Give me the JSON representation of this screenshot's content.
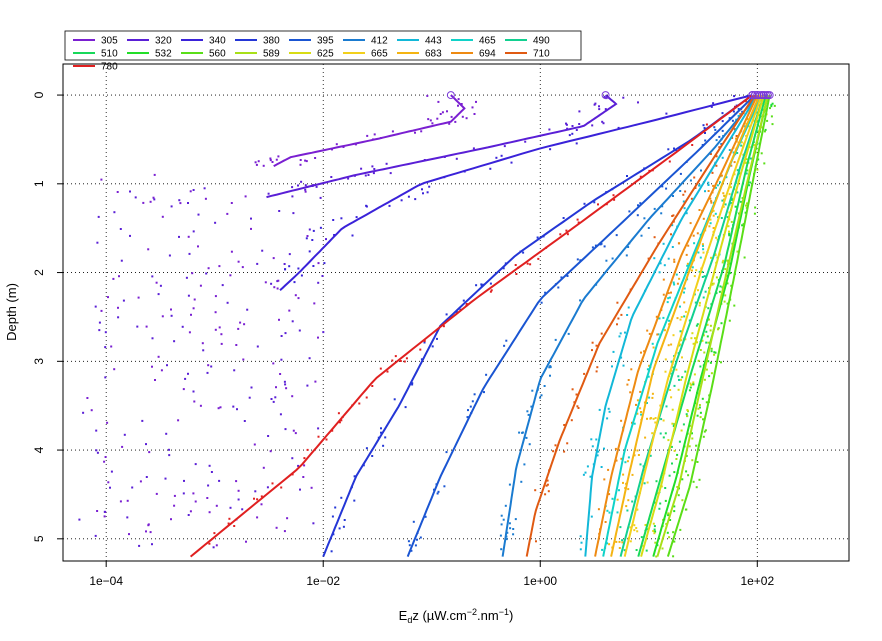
{
  "chart_data": {
    "type": "scatter",
    "title": "",
    "xlabel": "Eₐz",
    "xlabel_sub": "d",
    "xlabel_main": "E",
    "xlabel_after": "z  (µW.cm",
    "xlabel_sup1": "−2",
    "xlabel_mid": ".nm",
    "xlabel_sup2": "−1",
    "xlabel_end": ")",
    "ylabel": "Depth (m)",
    "xscale": "log",
    "xlim": [
      4e-05,
      700
    ],
    "ylim": [
      5.25,
      -0.35
    ],
    "x_ticks": [
      0.0001,
      0.01,
      1,
      100
    ],
    "x_tick_labels": [
      "1e−04",
      "1e−02",
      "1e+00",
      "1e+02"
    ],
    "y_ticks": [
      0,
      1,
      2,
      3,
      4,
      5
    ],
    "y_tick_labels": [
      "0",
      "1",
      "2",
      "3",
      "4",
      "5"
    ],
    "grid": true,
    "legend_position": "top-left",
    "legend_columns": 9,
    "series": [
      {
        "name": "305",
        "color": "#7a1fd1",
        "curve": [
          [
            0.15,
            0
          ],
          [
            0.2,
            0.15
          ],
          [
            0.15,
            0.3
          ],
          [
            0.03,
            0.5
          ],
          [
            0.005,
            0.7
          ],
          [
            0.0035,
            0.8
          ]
        ]
      },
      {
        "name": "320",
        "color": "#5a1fd6",
        "curve": [
          [
            4,
            0
          ],
          [
            5,
            0.1
          ],
          [
            2.5,
            0.35
          ],
          [
            0.3,
            0.6
          ],
          [
            0.02,
            0.9
          ],
          [
            0.003,
            1.15
          ]
        ]
      },
      {
        "name": "340",
        "color": "#3a22d9",
        "curve": [
          [
            90,
            0
          ],
          [
            10,
            0.3
          ],
          [
            1,
            0.6
          ],
          [
            0.08,
            1.0
          ],
          [
            0.015,
            1.5
          ],
          [
            0.006,
            2.0
          ],
          [
            0.004,
            2.2
          ]
        ]
      },
      {
        "name": "380",
        "color": "#2436d6",
        "curve": [
          [
            90,
            0
          ],
          [
            25,
            0.5
          ],
          [
            3,
            1.2
          ],
          [
            0.6,
            1.8
          ],
          [
            0.12,
            2.6
          ],
          [
            0.05,
            3.5
          ],
          [
            0.02,
            4.3
          ],
          [
            0.01,
            5.2
          ]
        ]
      },
      {
        "name": "395",
        "color": "#1a55d2",
        "curve": [
          [
            95,
            0
          ],
          [
            30,
            0.6
          ],
          [
            5,
            1.5
          ],
          [
            1,
            2.3
          ],
          [
            0.3,
            3.3
          ],
          [
            0.12,
            4.3
          ],
          [
            0.06,
            5.2
          ]
        ]
      },
      {
        "name": "412",
        "color": "#1a7bd0",
        "curve": [
          [
            100,
            0
          ],
          [
            40,
            0.6
          ],
          [
            10,
            1.4
          ],
          [
            2.5,
            2.3
          ],
          [
            1,
            3.2
          ],
          [
            0.6,
            4.2
          ],
          [
            0.45,
            5.2
          ]
        ]
      },
      {
        "name": "443",
        "color": "#12b8d8",
        "curve": [
          [
            100,
            0
          ],
          [
            50,
            0.6
          ],
          [
            20,
            1.4
          ],
          [
            7,
            2.5
          ],
          [
            4,
            3.5
          ],
          [
            3,
            4.3
          ],
          [
            2.6,
            5.2
          ]
        ]
      },
      {
        "name": "465",
        "color": "#10d2c8",
        "curve": [
          [
            110,
            0
          ],
          [
            60,
            0.7
          ],
          [
            30,
            1.6
          ],
          [
            12,
            2.8
          ],
          [
            6,
            4.0
          ],
          [
            3.8,
            5.2
          ]
        ]
      },
      {
        "name": "490",
        "color": "#12d090",
        "curve": [
          [
            115,
            0
          ],
          [
            70,
            0.8
          ],
          [
            40,
            1.8
          ],
          [
            18,
            3.0
          ],
          [
            9,
            4.2
          ],
          [
            5.5,
            5.2
          ]
        ]
      },
      {
        "name": "510",
        "color": "#18d85a",
        "curve": [
          [
            120,
            0
          ],
          [
            80,
            0.8
          ],
          [
            50,
            1.9
          ],
          [
            25,
            3.1
          ],
          [
            13,
            4.3
          ],
          [
            8,
            5.2
          ]
        ]
      },
      {
        "name": "532",
        "color": "#22de28",
        "curve": [
          [
            125,
            0
          ],
          [
            85,
            0.9
          ],
          [
            55,
            2.0
          ],
          [
            30,
            3.2
          ],
          [
            18,
            4.3
          ],
          [
            11,
            5.2
          ]
        ]
      },
      {
        "name": "560",
        "color": "#5ade18",
        "curve": [
          [
            130,
            0
          ],
          [
            90,
            1.0
          ],
          [
            60,
            2.1
          ],
          [
            38,
            3.3
          ],
          [
            24,
            4.4
          ],
          [
            15,
            5.2
          ]
        ]
      },
      {
        "name": "589",
        "color": "#a8e018",
        "curve": [
          [
            125,
            0
          ],
          [
            80,
            1.0
          ],
          [
            50,
            2.1
          ],
          [
            30,
            3.3
          ],
          [
            19,
            4.4
          ],
          [
            12,
            5.2
          ]
        ]
      },
      {
        "name": "625",
        "color": "#d8dc14",
        "curve": [
          [
            115,
            0
          ],
          [
            70,
            0.9
          ],
          [
            40,
            2.0
          ],
          [
            22,
            3.2
          ],
          [
            13,
            4.4
          ],
          [
            8.5,
            5.2
          ]
        ]
      },
      {
        "name": "665",
        "color": "#f2d01c",
        "curve": [
          [
            110,
            0
          ],
          [
            60,
            0.9
          ],
          [
            30,
            2.0
          ],
          [
            15,
            3.2
          ],
          [
            9,
            4.3
          ],
          [
            6,
            5.2
          ]
        ]
      },
      {
        "name": "683",
        "color": "#f4b412",
        "curve": [
          [
            105,
            0
          ],
          [
            55,
            0.8
          ],
          [
            25,
            1.9
          ],
          [
            11,
            3.1
          ],
          [
            6.5,
            4.3
          ],
          [
            4.5,
            5.2
          ]
        ]
      },
      {
        "name": "694",
        "color": "#ee8a12",
        "curve": [
          [
            100,
            0
          ],
          [
            50,
            0.8
          ],
          [
            20,
            1.8
          ],
          [
            8,
            3.1
          ],
          [
            4.5,
            4.3
          ],
          [
            3.2,
            5.2
          ]
        ]
      },
      {
        "name": "710",
        "color": "#e05a12",
        "curve": [
          [
            95,
            0
          ],
          [
            40,
            0.7
          ],
          [
            12,
            1.7
          ],
          [
            3.5,
            2.8
          ],
          [
            1.5,
            3.9
          ],
          [
            0.9,
            4.7
          ],
          [
            0.75,
            5.2
          ]
        ]
      },
      {
        "name": "780",
        "color": "#e02020",
        "curve": [
          [
            90,
            0
          ],
          [
            20,
            0.6
          ],
          [
            2,
            1.5
          ],
          [
            0.25,
            2.3
          ],
          [
            0.03,
            3.2
          ],
          [
            0.006,
            4.2
          ],
          [
            0.0006,
            5.2
          ]
        ]
      }
    ]
  }
}
